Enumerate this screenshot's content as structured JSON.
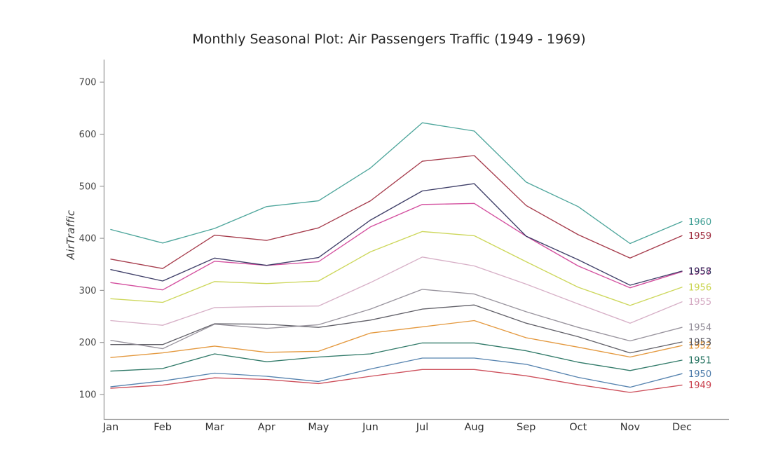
{
  "chart_data": {
    "type": "line",
    "title": "Monthly Seasonal Plot: Air Passengers Traffic (1949 - 1969)",
    "xlabel": "",
    "ylabel": "AirTraffic",
    "categories": [
      "Jan",
      "Feb",
      "Mar",
      "Apr",
      "May",
      "Jun",
      "Jul",
      "Aug",
      "Sep",
      "Oct",
      "Nov",
      "Dec"
    ],
    "yticks": [
      100,
      200,
      300,
      400,
      500,
      600,
      700
    ],
    "ylim": [
      50,
      745
    ],
    "grid": false,
    "legend_position": "end-of-line-labels-right",
    "series": [
      {
        "name": "1949",
        "color": "#c9404d",
        "values": [
          112,
          118,
          132,
          129,
          121,
          135,
          148,
          148,
          136,
          119,
          104,
          118
        ]
      },
      {
        "name": "1950",
        "color": "#4878a8",
        "values": [
          115,
          126,
          141,
          135,
          125,
          149,
          170,
          170,
          158,
          133,
          114,
          140
        ]
      },
      {
        "name": "1951",
        "color": "#1f6f5c",
        "values": [
          145,
          150,
          178,
          163,
          172,
          178,
          199,
          199,
          184,
          162,
          146,
          166
        ]
      },
      {
        "name": "1952",
        "color": "#e2902f",
        "values": [
          171,
          180,
          193,
          181,
          183,
          218,
          230,
          242,
          209,
          191,
          172,
          194
        ]
      },
      {
        "name": "1953",
        "color": "#55545c",
        "values": [
          196,
          196,
          236,
          235,
          229,
          243,
          264,
          272,
          237,
          211,
          180,
          201
        ]
      },
      {
        "name": "1954",
        "color": "#908b96",
        "values": [
          204,
          188,
          235,
          227,
          234,
          264,
          302,
          293,
          259,
          229,
          203,
          229
        ]
      },
      {
        "name": "1955",
        "color": "#d4a9c2",
        "values": [
          242,
          233,
          267,
          269,
          270,
          315,
          364,
          347,
          312,
          274,
          237,
          278
        ]
      },
      {
        "name": "1956",
        "color": "#c9d44d",
        "values": [
          284,
          277,
          317,
          313,
          318,
          374,
          413,
          405,
          355,
          306,
          271,
          306
        ]
      },
      {
        "name": "1957",
        "color": "#cf3f96",
        "values": [
          315,
          301,
          356,
          348,
          355,
          422,
          465,
          467,
          404,
          347,
          305,
          336
        ]
      },
      {
        "name": "1958",
        "color": "#30305c",
        "values": [
          340,
          318,
          362,
          348,
          363,
          435,
          491,
          505,
          404,
          359,
          310,
          337
        ]
      },
      {
        "name": "1959",
        "color": "#9e2b3d",
        "values": [
          360,
          342,
          406,
          396,
          420,
          472,
          548,
          559,
          463,
          407,
          362,
          405
        ]
      },
      {
        "name": "1960",
        "color": "#3f9e94",
        "values": [
          417,
          391,
          419,
          461,
          472,
          535,
          622,
          606,
          508,
          461,
          390,
          432
        ]
      }
    ]
  }
}
